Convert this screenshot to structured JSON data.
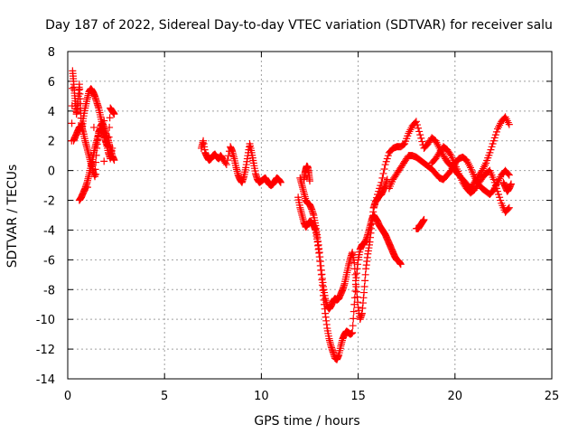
{
  "chart_data": {
    "type": "scatter",
    "title": "Day 187 of 2022, Sidereal Day-to-day VTEC variation (SDTVAR) for receiver salu",
    "xlabel": "GPS time / hours",
    "ylabel": "SDTVAR / TECUs",
    "xlim": [
      0,
      25
    ],
    "ylim": [
      -14,
      8
    ],
    "xticks": [
      0,
      5,
      10,
      15,
      20,
      25
    ],
    "yticks": [
      -14,
      -12,
      -10,
      -8,
      -6,
      -4,
      -2,
      0,
      2,
      4,
      6,
      8
    ],
    "grid": true,
    "legend": "none",
    "marker": "plus",
    "color": "#ff0000",
    "series": [
      {
        "x": [
          0.2,
          0.25,
          0.3,
          0.35,
          0.4,
          0.45,
          0.5,
          0.55,
          0.6,
          0.65,
          0.7,
          0.75,
          0.8,
          0.9,
          1.0,
          1.1,
          1.2,
          1.3,
          1.4,
          1.5,
          1.6,
          1.7,
          1.8,
          1.9,
          2.0,
          2.1,
          2.2,
          2.3,
          2.4,
          0.3,
          0.4,
          0.5,
          0.6,
          0.7,
          0.8,
          0.9,
          1.0,
          1.1,
          1.2,
          1.3,
          1.4,
          1.5,
          1.6,
          1.7,
          1.8,
          1.9,
          2.0,
          2.1,
          2.2,
          2.3,
          0.6,
          0.7,
          0.8,
          0.9,
          1.0,
          1.1,
          1.2,
          1.3,
          1.4,
          1.5,
          1.6,
          1.7,
          1.8,
          1.9,
          2.0,
          2.1,
          2.2,
          2.3,
          2.4
        ],
        "y": [
          2.0,
          6.7,
          6.0,
          5.2,
          4.5,
          3.8,
          4.2,
          5.0,
          5.8,
          4.5,
          3.2,
          2.8,
          3.5,
          4.2,
          4.8,
          5.3,
          5.5,
          5.3,
          5.0,
          4.6,
          4.2,
          3.6,
          3.0,
          2.4,
          1.8,
          1.6,
          4.2,
          4.0,
          3.8,
          2.0,
          2.3,
          2.6,
          2.9,
          3.0,
          2.6,
          2.0,
          1.5,
          1.0,
          0.5,
          0.0,
          -0.4,
          1.5,
          2.6,
          2.8,
          2.7,
          2.2,
          1.8,
          1.2,
          0.8,
          1.5,
          -2.0,
          -1.8,
          -1.5,
          -1.2,
          -0.8,
          -0.3,
          0.3,
          0.9,
          1.5,
          2.0,
          2.5,
          3.0,
          3.2,
          2.8,
          2.4,
          2.0,
          1.5,
          1.0,
          0.7
        ]
      },
      {
        "x": [
          6.9,
          7.0,
          7.1,
          7.2,
          7.3,
          7.4,
          7.5,
          7.6,
          7.7,
          7.8,
          7.9,
          8.0,
          8.2,
          8.4,
          8.5,
          8.6,
          8.7,
          8.8,
          8.9,
          9.0,
          9.1,
          9.2,
          9.3,
          9.4,
          9.5,
          9.6,
          9.7,
          9.8,
          9.9,
          10.0,
          10.1,
          10.2,
          10.3,
          10.4,
          10.5,
          10.6,
          10.7,
          10.8,
          10.9,
          11.0
        ],
        "y": [
          1.5,
          2.0,
          1.2,
          0.9,
          0.7,
          0.8,
          1.0,
          1.1,
          0.9,
          0.8,
          1.0,
          0.8,
          0.4,
          1.6,
          1.3,
          0.8,
          0.2,
          -0.3,
          -0.6,
          -0.8,
          -0.4,
          0.2,
          1.0,
          1.8,
          1.2,
          0.5,
          -0.2,
          -0.6,
          -0.8,
          -0.7,
          -0.6,
          -0.5,
          -0.7,
          -0.9,
          -1.0,
          -0.9,
          -0.7,
          -0.5,
          -0.6,
          -0.8
        ]
      },
      {
        "x": [
          11.9,
          12.0,
          12.1,
          12.2,
          12.3,
          12.4,
          12.5,
          12.6,
          12.7,
          12.8,
          12.9,
          13.0,
          13.1,
          13.2,
          13.3,
          13.4,
          13.5,
          13.6,
          13.7,
          13.8,
          13.9,
          14.0,
          14.1,
          14.2,
          14.3,
          14.4,
          14.5,
          14.6,
          14.7,
          14.8,
          14.9,
          15.0,
          15.1,
          15.2,
          15.3,
          15.4,
          15.5,
          15.6,
          15.7,
          15.8,
          15.9,
          16.0,
          16.1,
          16.2,
          16.3,
          16.4,
          16.5,
          16.6,
          16.7,
          16.8,
          16.9,
          17.0,
          17.1,
          17.2
        ],
        "y": [
          -1.8,
          -2.5,
          -3.0,
          -3.5,
          -3.8,
          -3.6,
          -3.4,
          -3.5,
          -3.7,
          -4.0,
          -4.8,
          -5.8,
          -7.0,
          -8.4,
          -9.6,
          -10.6,
          -11.3,
          -11.8,
          -12.2,
          -12.6,
          -12.7,
          -12.4,
          -11.8,
          -11.3,
          -11.0,
          -10.8,
          -10.9,
          -11.0,
          -10.9,
          -9.0,
          -7.2,
          -6.0,
          -5.3,
          -5.0,
          -4.9,
          -4.7,
          -4.3,
          -3.8,
          -3.3,
          -3.0,
          -3.2,
          -3.4,
          -3.7,
          -3.9,
          -4.1,
          -4.3,
          -4.6,
          -4.9,
          -5.2,
          -5.5,
          -5.8,
          -6.0,
          -6.1,
          -6.3
        ]
      },
      {
        "x": [
          12.0,
          12.1,
          12.2,
          12.3,
          12.4,
          12.5,
          12.6,
          12.7,
          12.8,
          12.9,
          13.0,
          13.1,
          13.2,
          13.3,
          13.4,
          13.5,
          13.6,
          13.7,
          13.8,
          13.9,
          14.0,
          14.1,
          14.2,
          14.3,
          14.4,
          14.5,
          14.6,
          14.7,
          14.8,
          14.9,
          15.0,
          15.1,
          15.2,
          15.3,
          15.4,
          15.5,
          15.6,
          15.7,
          15.8,
          15.9,
          16.0,
          16.1,
          16.2,
          16.3,
          16.4,
          16.5
        ],
        "y": [
          -0.5,
          -1.0,
          -1.5,
          -2.0,
          -2.2,
          -2.3,
          -2.6,
          -3.0,
          -3.7,
          -4.5,
          -5.5,
          -6.7,
          -7.8,
          -8.6,
          -9.1,
          -9.3,
          -9.1,
          -8.8,
          -8.6,
          -8.7,
          -8.6,
          -8.3,
          -8.0,
          -7.6,
          -7.0,
          -6.4,
          -5.9,
          -5.5,
          -6.2,
          -7.8,
          -9.2,
          -10.0,
          -9.6,
          -8.2,
          -6.6,
          -5.6,
          -4.8,
          -3.6,
          -2.5,
          -2.1,
          -1.9,
          -1.7,
          -1.6,
          -1.3,
          -1.0,
          -0.6
        ]
      },
      {
        "x": [
          12.2,
          12.25,
          12.3,
          12.35,
          12.4,
          12.45,
          12.5
        ],
        "y": [
          -0.6,
          -0.2,
          0.1,
          0.3,
          0.2,
          -0.2,
          -0.7
        ]
      },
      {
        "x": [
          15.8,
          16.0,
          16.2,
          16.4,
          16.6,
          16.8,
          17.0,
          17.2,
          17.4,
          17.6,
          17.8,
          18.0,
          18.2,
          18.4,
          18.6,
          18.8,
          19.0,
          19.2,
          19.4,
          19.6,
          19.8,
          20.0,
          20.2,
          20.4,
          20.6,
          20.8,
          21.0,
          21.2,
          21.4,
          21.6,
          21.8,
          22.0,
          22.2,
          22.4,
          22.6,
          22.8
        ],
        "y": [
          -2.5,
          -1.6,
          -0.8,
          0.4,
          1.2,
          1.5,
          1.6,
          1.6,
          1.8,
          2.5,
          3.0,
          3.3,
          2.4,
          1.5,
          1.8,
          2.2,
          2.0,
          1.5,
          1.0,
          0.6,
          0.3,
          0.0,
          -0.3,
          -0.6,
          -0.9,
          -1.2,
          -0.8,
          -0.4,
          0.0,
          0.5,
          1.2,
          2.0,
          2.8,
          3.3,
          3.6,
          3.1
        ]
      },
      {
        "x": [
          16.6,
          16.8,
          17.0,
          17.2,
          17.4,
          17.6,
          17.8,
          18.0,
          18.2,
          18.4,
          18.6,
          18.8,
          19.0,
          19.2,
          19.4,
          19.6,
          19.8,
          20.0,
          20.2,
          20.4,
          20.6,
          20.8,
          21.0,
          21.2,
          21.4,
          21.6,
          21.8,
          22.0,
          22.2,
          22.4,
          22.6,
          22.8
        ],
        "y": [
          -1.2,
          -0.6,
          -0.2,
          0.2,
          0.6,
          1.0,
          1.0,
          0.9,
          0.7,
          0.5,
          0.3,
          0.1,
          -0.2,
          -0.5,
          -0.6,
          -0.3,
          0.0,
          0.5,
          0.8,
          0.9,
          0.7,
          0.2,
          -0.4,
          -0.9,
          -1.2,
          -1.4,
          -1.6,
          -1.3,
          -0.8,
          -0.3,
          0.0,
          -0.3
        ]
      },
      {
        "x": [
          18.8,
          19.0,
          19.2,
          19.4,
          19.6,
          19.8,
          20.0,
          20.2,
          20.4,
          20.6,
          20.8,
          21.0,
          21.2,
          21.4,
          21.6,
          21.8,
          22.0,
          22.2,
          22.4,
          22.6,
          22.8
        ],
        "y": [
          0.5,
          0.8,
          1.2,
          1.6,
          1.4,
          1.0,
          0.4,
          -0.2,
          -0.8,
          -1.2,
          -1.5,
          -1.3,
          -0.9,
          -0.5,
          -0.2,
          0.0,
          -0.6,
          -1.4,
          -2.2,
          -2.8,
          -2.5
        ]
      },
      {
        "x": [
          18.0,
          18.1,
          18.2,
          18.3,
          18.4
        ],
        "y": [
          -3.9,
          -3.9,
          -3.7,
          -3.5,
          -3.3
        ]
      },
      {
        "x": [
          22.5,
          22.6,
          22.7,
          22.8,
          22.9
        ],
        "y": [
          -0.8,
          -1.1,
          -1.4,
          -1.2,
          -0.9
        ]
      }
    ]
  }
}
